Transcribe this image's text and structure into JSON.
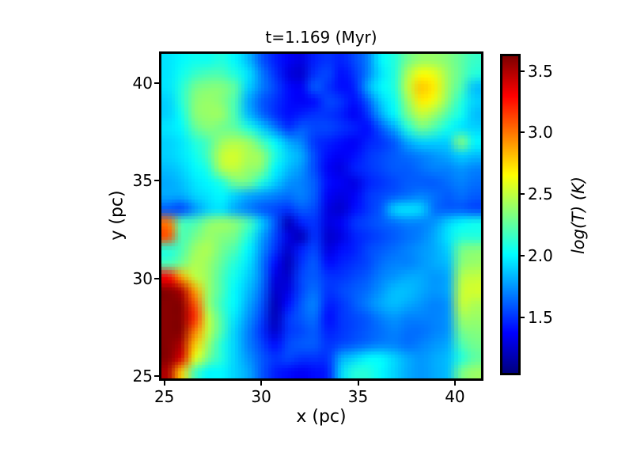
{
  "figure": {
    "background": "#ffffff",
    "text_color": "#000000",
    "axes_border_color": "#000000"
  },
  "chart_data": {
    "type": "heatmap",
    "title": "t=1.169 (Myr)",
    "time_myr": 1.169,
    "xlabel": "x (pc)",
    "ylabel": "y (pc)",
    "colorbar_label": "log(T) (K)",
    "colormap": "jet",
    "xlim": [
      24.85,
      41.35
    ],
    "ylim": [
      24.88,
      41.5
    ],
    "xticks": [
      25,
      30,
      35,
      40
    ],
    "xtick_labels": [
      "25",
      "30",
      "35",
      "40"
    ],
    "yticks": [
      25,
      30,
      35,
      40
    ],
    "ytick_labels": [
      "25",
      "30",
      "35",
      "40"
    ],
    "vmin": 1.05,
    "vmax": 3.62,
    "colorbar_ticks": [
      3.5,
      3.0,
      2.5,
      2.0,
      1.5
    ],
    "colorbar_tick_labels": [
      "3.5",
      "3.0",
      "2.5",
      "2.0",
      "1.5"
    ],
    "grid_note": "log10 temperature sampled on a 24x24 grid, row 0 = top of image (y=41.5 pc)",
    "values": [
      [
        1.95,
        2.0,
        2.05,
        2.05,
        2.1,
        2.0,
        1.85,
        1.6,
        1.45,
        1.35,
        1.3,
        1.45,
        1.5,
        1.45,
        1.55,
        1.7,
        2.0,
        2.1,
        2.3,
        2.4,
        2.4,
        2.35,
        2.25,
        2.15
      ],
      [
        1.95,
        2.05,
        2.15,
        2.2,
        2.2,
        2.1,
        1.95,
        1.7,
        1.5,
        1.3,
        1.25,
        1.5,
        1.55,
        1.4,
        1.5,
        1.7,
        1.95,
        2.1,
        2.45,
        2.65,
        2.6,
        2.4,
        2.25,
        2.1
      ],
      [
        1.95,
        2.1,
        2.3,
        2.35,
        2.35,
        2.25,
        1.9,
        1.7,
        1.55,
        1.4,
        1.35,
        1.6,
        1.5,
        1.4,
        1.45,
        1.8,
        2.0,
        2.1,
        2.5,
        2.8,
        2.7,
        2.4,
        2.2,
        1.85
      ],
      [
        1.9,
        2.1,
        2.35,
        2.4,
        2.35,
        2.2,
        1.8,
        1.6,
        1.5,
        1.4,
        1.35,
        1.4,
        1.55,
        1.5,
        1.4,
        1.6,
        1.9,
        2.05,
        2.4,
        2.7,
        2.6,
        2.35,
        2.1,
        1.9
      ],
      [
        1.9,
        2.05,
        2.35,
        2.4,
        2.4,
        2.2,
        1.85,
        1.65,
        1.5,
        1.4,
        1.45,
        1.5,
        1.5,
        1.45,
        1.35,
        1.5,
        1.8,
        2.0,
        2.3,
        2.5,
        2.4,
        2.2,
        2.05,
        1.85
      ],
      [
        1.95,
        2.0,
        2.25,
        2.35,
        2.3,
        2.25,
        2.1,
        1.9,
        1.7,
        1.5,
        1.6,
        1.55,
        1.55,
        1.5,
        1.45,
        1.4,
        1.6,
        1.8,
        2.1,
        2.3,
        2.2,
        2.05,
        1.95,
        1.9
      ],
      [
        1.9,
        1.95,
        2.1,
        2.2,
        2.4,
        2.45,
        2.4,
        2.2,
        2.0,
        1.8,
        1.7,
        1.5,
        1.45,
        1.4,
        1.35,
        1.45,
        1.5,
        1.6,
        1.8,
        1.9,
        1.9,
        1.9,
        2.35,
        2.0
      ],
      [
        1.9,
        1.95,
        2.05,
        2.2,
        2.5,
        2.55,
        2.45,
        2.4,
        2.1,
        1.9,
        1.8,
        1.55,
        1.4,
        1.35,
        1.4,
        1.5,
        1.55,
        1.6,
        1.65,
        1.7,
        1.75,
        1.8,
        1.9,
        1.85
      ],
      [
        1.85,
        1.9,
        2.0,
        2.1,
        2.45,
        2.5,
        2.4,
        2.35,
        2.0,
        1.85,
        1.75,
        1.55,
        1.35,
        1.3,
        1.45,
        1.5,
        1.55,
        1.6,
        1.6,
        1.65,
        1.7,
        1.7,
        1.75,
        1.7
      ],
      [
        1.8,
        1.85,
        1.95,
        2.0,
        2.1,
        2.3,
        2.3,
        2.1,
        1.9,
        1.75,
        1.7,
        1.6,
        1.4,
        1.35,
        1.3,
        1.45,
        1.5,
        1.55,
        1.6,
        1.6,
        1.6,
        1.65,
        1.7,
        1.65
      ],
      [
        1.8,
        1.8,
        1.9,
        1.95,
        2.0,
        1.9,
        1.8,
        1.75,
        1.7,
        1.65,
        1.7,
        1.6,
        1.35,
        1.3,
        1.35,
        1.5,
        1.55,
        1.6,
        1.65,
        1.7,
        1.65,
        1.6,
        1.65,
        1.6
      ],
      [
        1.6,
        1.55,
        1.75,
        1.9,
        1.95,
        1.8,
        1.7,
        1.6,
        1.55,
        1.5,
        1.6,
        1.55,
        1.3,
        1.25,
        1.4,
        1.5,
        1.6,
        1.9,
        1.95,
        1.9,
        1.65,
        1.6,
        1.6,
        1.55
      ],
      [
        3.0,
        2.2,
        2.2,
        2.35,
        2.4,
        2.35,
        2.2,
        1.9,
        1.6,
        1.2,
        1.45,
        1.5,
        1.3,
        1.35,
        1.5,
        1.55,
        1.6,
        1.65,
        1.7,
        1.7,
        1.75,
        1.9,
        2.0,
        2.05
      ],
      [
        3.1,
        2.2,
        2.3,
        2.4,
        2.35,
        2.3,
        2.1,
        1.8,
        1.55,
        1.3,
        1.2,
        1.5,
        1.25,
        1.3,
        1.45,
        1.5,
        1.55,
        1.6,
        1.65,
        1.7,
        1.8,
        1.95,
        2.1,
        2.1
      ],
      [
        2.1,
        2.2,
        2.4,
        2.45,
        2.3,
        2.2,
        2.0,
        1.75,
        1.5,
        1.25,
        1.45,
        1.55,
        1.3,
        1.4,
        1.45,
        1.55,
        1.6,
        1.65,
        1.7,
        1.75,
        1.8,
        1.9,
        2.3,
        2.35
      ],
      [
        2.2,
        2.3,
        2.45,
        2.4,
        2.25,
        2.1,
        1.95,
        1.7,
        1.4,
        1.2,
        1.5,
        1.6,
        1.4,
        1.45,
        1.5,
        1.55,
        1.65,
        1.7,
        1.7,
        1.75,
        1.8,
        1.85,
        2.35,
        2.4
      ],
      [
        3.3,
        2.9,
        2.5,
        2.4,
        2.2,
        2.05,
        1.9,
        1.7,
        1.3,
        1.25,
        1.55,
        1.6,
        1.5,
        1.5,
        1.55,
        1.6,
        1.7,
        1.75,
        1.8,
        1.8,
        1.75,
        1.8,
        2.45,
        2.5
      ],
      [
        3.6,
        3.5,
        2.9,
        2.4,
        2.2,
        2.0,
        1.85,
        1.65,
        1.25,
        1.3,
        1.55,
        1.65,
        1.5,
        1.55,
        1.6,
        1.65,
        1.75,
        1.85,
        1.85,
        1.8,
        1.75,
        1.8,
        2.5,
        2.55
      ],
      [
        3.6,
        3.6,
        3.1,
        2.4,
        2.15,
        2.0,
        1.8,
        1.6,
        1.2,
        1.4,
        1.6,
        1.7,
        1.45,
        1.5,
        1.6,
        1.7,
        1.8,
        1.85,
        1.8,
        1.75,
        1.7,
        1.75,
        2.5,
        2.45
      ],
      [
        3.6,
        3.6,
        3.2,
        2.5,
        2.2,
        1.95,
        1.75,
        1.55,
        1.2,
        1.5,
        1.6,
        1.65,
        1.4,
        1.5,
        1.55,
        1.6,
        1.7,
        1.75,
        1.7,
        1.7,
        1.7,
        1.75,
        2.4,
        2.4
      ],
      [
        3.6,
        3.6,
        3.0,
        2.5,
        2.2,
        1.9,
        1.7,
        1.5,
        1.25,
        1.5,
        1.55,
        1.6,
        1.45,
        1.5,
        1.55,
        1.6,
        1.65,
        1.7,
        1.65,
        1.65,
        1.7,
        1.75,
        2.3,
        2.35
      ],
      [
        3.6,
        3.5,
        2.8,
        2.4,
        2.1,
        1.9,
        1.7,
        1.55,
        1.4,
        1.55,
        1.6,
        1.6,
        1.5,
        1.55,
        1.6,
        1.65,
        1.7,
        1.7,
        1.65,
        1.7,
        1.75,
        1.8,
        2.2,
        2.3
      ],
      [
        3.6,
        3.4,
        2.6,
        2.3,
        2.1,
        1.9,
        1.75,
        1.6,
        1.5,
        1.55,
        1.5,
        1.5,
        1.5,
        1.8,
        1.9,
        2.0,
        2.0,
        1.9,
        1.8,
        1.75,
        1.8,
        1.85,
        2.1,
        2.25
      ],
      [
        3.5,
        2.8,
        2.2,
        2.0,
        2.0,
        1.9,
        1.8,
        1.6,
        1.45,
        1.4,
        1.35,
        1.4,
        1.45,
        1.9,
        2.1,
        2.1,
        2.0,
        1.9,
        1.8,
        1.75,
        1.8,
        1.85,
        2.3,
        2.4
      ]
    ]
  }
}
